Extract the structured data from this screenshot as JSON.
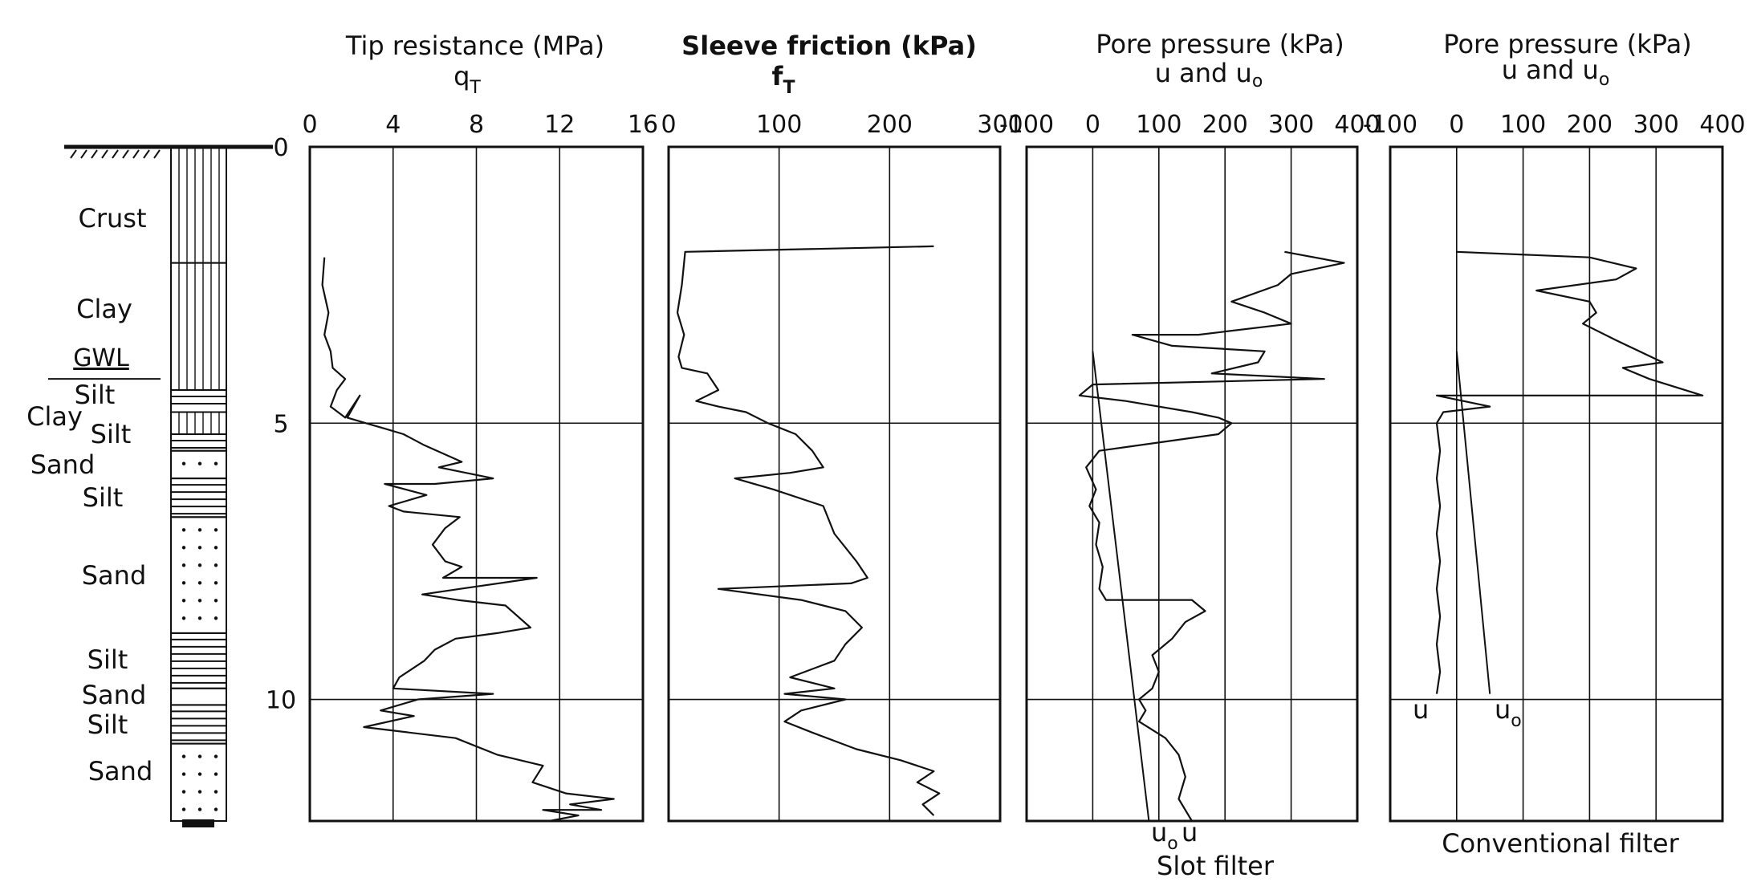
{
  "chart_data": [
    {
      "type": "line",
      "title": "Tip resistance (MPa)",
      "subtitle": "q",
      "subtitle_sub": "T",
      "x_ticks": [
        "0",
        "4",
        "8",
        "12",
        "16"
      ],
      "y_ticks": [
        "0",
        "5",
        "10"
      ],
      "xlim": [
        0,
        16
      ],
      "ylim": [
        0,
        12.2
      ],
      "series": [
        {
          "points": [
            [
              0.7,
              2.0
            ],
            [
              0.6,
              2.5
            ],
            [
              0.9,
              3.0
            ],
            [
              0.7,
              3.4
            ],
            [
              1.0,
              3.7
            ],
            [
              1.1,
              4.0
            ],
            [
              1.7,
              4.2
            ],
            [
              1.3,
              4.4
            ],
            [
              1.0,
              4.7
            ],
            [
              1.7,
              4.9
            ],
            [
              2.4,
              4.5
            ],
            [
              1.8,
              4.9
            ],
            [
              2.7,
              5.0
            ],
            [
              3.6,
              5.1
            ],
            [
              4.5,
              5.2
            ],
            [
              5.5,
              5.4
            ],
            [
              7.3,
              5.7
            ],
            [
              6.2,
              5.8
            ],
            [
              8.8,
              6.0
            ],
            [
              6.0,
              6.1
            ],
            [
              3.6,
              6.1
            ],
            [
              5.6,
              6.3
            ],
            [
              3.8,
              6.5
            ],
            [
              4.5,
              6.6
            ],
            [
              7.2,
              6.7
            ],
            [
              6.5,
              6.9
            ],
            [
              5.9,
              7.2
            ],
            [
              6.5,
              7.5
            ],
            [
              7.3,
              7.6
            ],
            [
              6.4,
              7.8
            ],
            [
              10.9,
              7.8
            ],
            [
              7.2,
              8.0
            ],
            [
              5.4,
              8.1
            ],
            [
              7.1,
              8.2
            ],
            [
              9.4,
              8.3
            ],
            [
              10.6,
              8.7
            ],
            [
              9.0,
              8.8
            ],
            [
              7.0,
              8.9
            ],
            [
              6.0,
              9.1
            ],
            [
              5.5,
              9.3
            ],
            [
              4.3,
              9.6
            ],
            [
              4.0,
              9.8
            ],
            [
              8.8,
              9.9
            ],
            [
              5.2,
              10.0
            ],
            [
              3.4,
              10.2
            ],
            [
              5.0,
              10.3
            ],
            [
              2.6,
              10.5
            ],
            [
              7.0,
              10.7
            ],
            [
              9.0,
              11.0
            ],
            [
              11.2,
              11.2
            ],
            [
              10.7,
              11.5
            ],
            [
              12.3,
              11.7
            ],
            [
              14.6,
              11.8
            ],
            [
              12.5,
              11.9
            ],
            [
              14.0,
              12.0
            ],
            [
              11.2,
              12.0
            ],
            [
              12.9,
              12.1
            ],
            [
              11.5,
              12.2
            ]
          ]
        }
      ]
    },
    {
      "type": "line",
      "title": "Sleeve friction (kPa)",
      "subtitle": "f",
      "subtitle_sub": "T",
      "x_ticks": [
        "0",
        "100",
        "200",
        "300"
      ],
      "y_ticks": [],
      "xlim": [
        0,
        300
      ],
      "ylim": [
        0,
        12.2
      ],
      "series": [
        {
          "points": [
            [
              240,
              1.8
            ],
            [
              15,
              1.9
            ],
            [
              12,
              2.5
            ],
            [
              8,
              3.0
            ],
            [
              14,
              3.4
            ],
            [
              9,
              3.8
            ],
            [
              12,
              4.0
            ],
            [
              35,
              4.1
            ],
            [
              45,
              4.4
            ],
            [
              25,
              4.6
            ],
            [
              45,
              4.7
            ],
            [
              70,
              4.8
            ],
            [
              90,
              5.0
            ],
            [
              115,
              5.2
            ],
            [
              130,
              5.5
            ],
            [
              140,
              5.8
            ],
            [
              110,
              5.9
            ],
            [
              60,
              6.0
            ],
            [
              95,
              6.2
            ],
            [
              140,
              6.5
            ],
            [
              150,
              7.0
            ],
            [
              170,
              7.5
            ],
            [
              180,
              7.8
            ],
            [
              165,
              7.9
            ],
            [
              45,
              8.0
            ],
            [
              120,
              8.2
            ],
            [
              160,
              8.4
            ],
            [
              175,
              8.7
            ],
            [
              160,
              9.0
            ],
            [
              150,
              9.3
            ],
            [
              110,
              9.6
            ],
            [
              150,
              9.8
            ],
            [
              105,
              9.9
            ],
            [
              160,
              10.0
            ],
            [
              120,
              10.2
            ],
            [
              105,
              10.4
            ],
            [
              130,
              10.6
            ],
            [
              170,
              10.9
            ],
            [
              210,
              11.1
            ],
            [
              240,
              11.3
            ],
            [
              225,
              11.5
            ],
            [
              245,
              11.7
            ],
            [
              230,
              11.9
            ],
            [
              240,
              12.1
            ]
          ]
        }
      ]
    },
    {
      "type": "line",
      "title": "Pore pressure (kPa)",
      "subtitle": "u and u",
      "subtitle_sub": "o",
      "caption": "Slot filter",
      "annotations": [
        {
          "text": "u",
          "sub": "o"
        },
        {
          "text": "u",
          "sub": ""
        }
      ],
      "x_ticks": [
        "-100",
        "0",
        "100",
        "200",
        "300",
        "400"
      ],
      "y_ticks": [],
      "xlim": [
        -100,
        400
      ],
      "ylim": [
        0,
        12.2
      ],
      "series": [
        {
          "name": "u",
          "points": [
            [
              290,
              1.9
            ],
            [
              380,
              2.1
            ],
            [
              300,
              2.3
            ],
            [
              280,
              2.5
            ],
            [
              210,
              2.8
            ],
            [
              260,
              3.0
            ],
            [
              300,
              3.2
            ],
            [
              160,
              3.4
            ],
            [
              60,
              3.4
            ],
            [
              120,
              3.6
            ],
            [
              260,
              3.7
            ],
            [
              250,
              3.9
            ],
            [
              180,
              4.1
            ],
            [
              350,
              4.2
            ],
            [
              0,
              4.3
            ],
            [
              -20,
              4.5
            ],
            [
              50,
              4.6
            ],
            [
              150,
              4.8
            ],
            [
              190,
              4.9
            ],
            [
              210,
              5.0
            ],
            [
              190,
              5.2
            ],
            [
              10,
              5.5
            ],
            [
              -10,
              5.8
            ],
            [
              5,
              6.2
            ],
            [
              -5,
              6.5
            ],
            [
              10,
              6.8
            ],
            [
              5,
              7.2
            ],
            [
              15,
              7.6
            ],
            [
              10,
              8.0
            ],
            [
              20,
              8.2
            ],
            [
              150,
              8.2
            ],
            [
              170,
              8.4
            ],
            [
              140,
              8.6
            ],
            [
              120,
              8.9
            ],
            [
              90,
              9.2
            ],
            [
              100,
              9.5
            ],
            [
              90,
              9.8
            ],
            [
              70,
              10.0
            ],
            [
              80,
              10.2
            ],
            [
              70,
              10.4
            ],
            [
              110,
              10.7
            ],
            [
              130,
              11.0
            ],
            [
              140,
              11.4
            ],
            [
              130,
              11.8
            ],
            [
              150,
              12.2
            ]
          ]
        },
        {
          "name": "u",
          "sub": "o",
          "points": [
            [
              0,
              3.7
            ],
            [
              85,
              12.2
            ]
          ]
        }
      ]
    },
    {
      "type": "line",
      "title": "Pore pressure (kPa)",
      "subtitle": "u and u",
      "subtitle_sub": "o",
      "caption": "Conventional filter",
      "annotations": [
        {
          "text": "u",
          "sub": ""
        },
        {
          "text": "u",
          "sub": "o"
        }
      ],
      "x_ticks": [
        "-100",
        "0",
        "100",
        "200",
        "300",
        "400"
      ],
      "y_ticks": [],
      "xlim": [
        -100,
        400
      ],
      "ylim": [
        0,
        12.2
      ],
      "series": [
        {
          "name": "u",
          "points": [
            [
              0,
              1.9
            ],
            [
              200,
              2.0
            ],
            [
              270,
              2.2
            ],
            [
              240,
              2.4
            ],
            [
              120,
              2.6
            ],
            [
              200,
              2.8
            ],
            [
              210,
              3.0
            ],
            [
              190,
              3.2
            ],
            [
              240,
              3.5
            ],
            [
              310,
              3.9
            ],
            [
              250,
              4.0
            ],
            [
              290,
              4.2
            ],
            [
              370,
              4.5
            ],
            [
              -30,
              4.5
            ],
            [
              50,
              4.7
            ],
            [
              -20,
              4.8
            ],
            [
              -30,
              5.0
            ],
            [
              -25,
              5.5
            ],
            [
              -30,
              6.0
            ],
            [
              -25,
              6.5
            ],
            [
              -30,
              7.0
            ],
            [
              -25,
              7.5
            ],
            [
              -30,
              8.0
            ],
            [
              -25,
              8.5
            ],
            [
              -30,
              9.0
            ],
            [
              -25,
              9.5
            ],
            [
              -30,
              9.9
            ]
          ]
        },
        {
          "name": "u",
          "sub": "o",
          "points": [
            [
              0,
              3.7
            ],
            [
              50,
              9.9
            ]
          ]
        }
      ]
    }
  ],
  "log_column": {
    "labels": [
      "Crust",
      "Clay",
      "GWL",
      "Silt",
      "Clay",
      "Silt",
      "Sand",
      "Silt",
      "Sand",
      "Silt",
      "Sand",
      "Silt",
      "Sand"
    ],
    "layers": [
      {
        "top": 0,
        "bottom": 2.1,
        "pattern": "vertical"
      },
      {
        "top": 2.1,
        "bottom": 4.4,
        "pattern": "vertical"
      },
      {
        "top": 4.4,
        "bottom": 4.8,
        "pattern": "horizontal"
      },
      {
        "top": 4.8,
        "bottom": 5.2,
        "pattern": "vertical"
      },
      {
        "top": 5.2,
        "bottom": 5.5,
        "pattern": "horizontal"
      },
      {
        "top": 5.5,
        "bottom": 6.0,
        "pattern": "dots"
      },
      {
        "top": 6.0,
        "bottom": 6.7,
        "pattern": "horizontal"
      },
      {
        "top": 6.7,
        "bottom": 8.8,
        "pattern": "dots"
      },
      {
        "top": 8.8,
        "bottom": 9.8,
        "pattern": "horizontal"
      },
      {
        "top": 9.8,
        "bottom": 10.1,
        "pattern": "dots"
      },
      {
        "top": 10.1,
        "bottom": 10.8,
        "pattern": "horizontal"
      },
      {
        "top": 10.8,
        "bottom": 12.2,
        "pattern": "dots"
      }
    ]
  }
}
